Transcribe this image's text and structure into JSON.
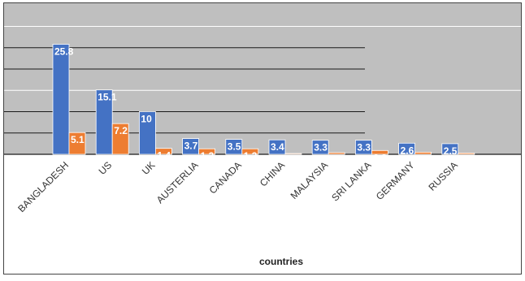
{
  "chart_data": {
    "type": "bar",
    "categories": [
      "BANGLADESH",
      "US",
      "UK",
      "AUSTERLIA",
      "CANADA",
      "CHINA",
      "MALAYSIA",
      "SRI LANKA",
      "GERMANY",
      "RUSSIA"
    ],
    "series": [
      {
        "values": [
          25.8,
          15.1,
          10,
          3.7,
          3.5,
          3.4,
          3.3,
          3.3,
          2.6,
          2.5
        ]
      },
      {
        "values": [
          5.1,
          7.2,
          1.4,
          1.3,
          1.3,
          0,
          0.4,
          0.9,
          0.5,
          0.3
        ]
      }
    ],
    "data_labels": [
      [
        "25.8",
        "15.1",
        "10",
        "3.7",
        "3.5",
        "3.4",
        "3.3",
        "3.3",
        "2.6",
        "2.5"
      ],
      [
        "5.1",
        "7.2",
        "1.4",
        "1.3",
        "1.3",
        "0",
        "0.4",
        "0.9",
        "0.5",
        "0.3"
      ]
    ],
    "xlabel": "countries",
    "ylabel": "",
    "ylim": [
      0,
      30
    ],
    "grid": true,
    "legend": "none",
    "colors": {
      "series_1": "#4472c4",
      "series_2": "#ed7d31",
      "plot_background": "#bfbfbf",
      "gridline_light": "#ffffff",
      "gridline_dark": "#1a1a1a",
      "label_text": "#ffffff",
      "axis_title": "#222222",
      "tick_label": "#333333"
    }
  }
}
